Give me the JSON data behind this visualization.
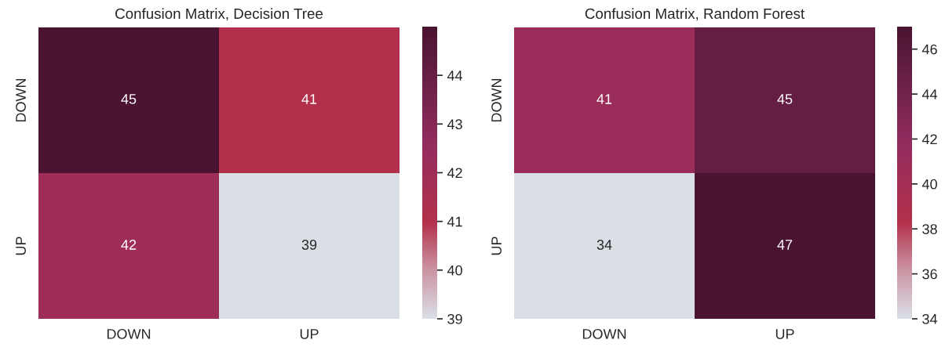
{
  "chart_data": [
    {
      "type": "heatmap",
      "title": "Confusion Matrix, Decision Tree",
      "categories": [
        "DOWN",
        "UP"
      ],
      "y_categories": [
        "DOWN",
        "UP"
      ],
      "cells": [
        [
          45,
          41
        ],
        [
          42,
          39
        ]
      ],
      "clim": [
        39,
        45
      ],
      "cticks": [
        39,
        40,
        41,
        42,
        43,
        44
      ],
      "data_labels": true
    },
    {
      "type": "heatmap",
      "title": "Confusion Matrix, Random Forest",
      "categories": [
        "DOWN",
        "UP"
      ],
      "y_categories": [
        "DOWN",
        "UP"
      ],
      "cells": [
        [
          41,
          45
        ],
        [
          34,
          47
        ]
      ],
      "clim": [
        34,
        47
      ],
      "cticks": [
        34,
        36,
        38,
        40,
        42,
        44,
        46
      ],
      "data_labels": true
    }
  ]
}
